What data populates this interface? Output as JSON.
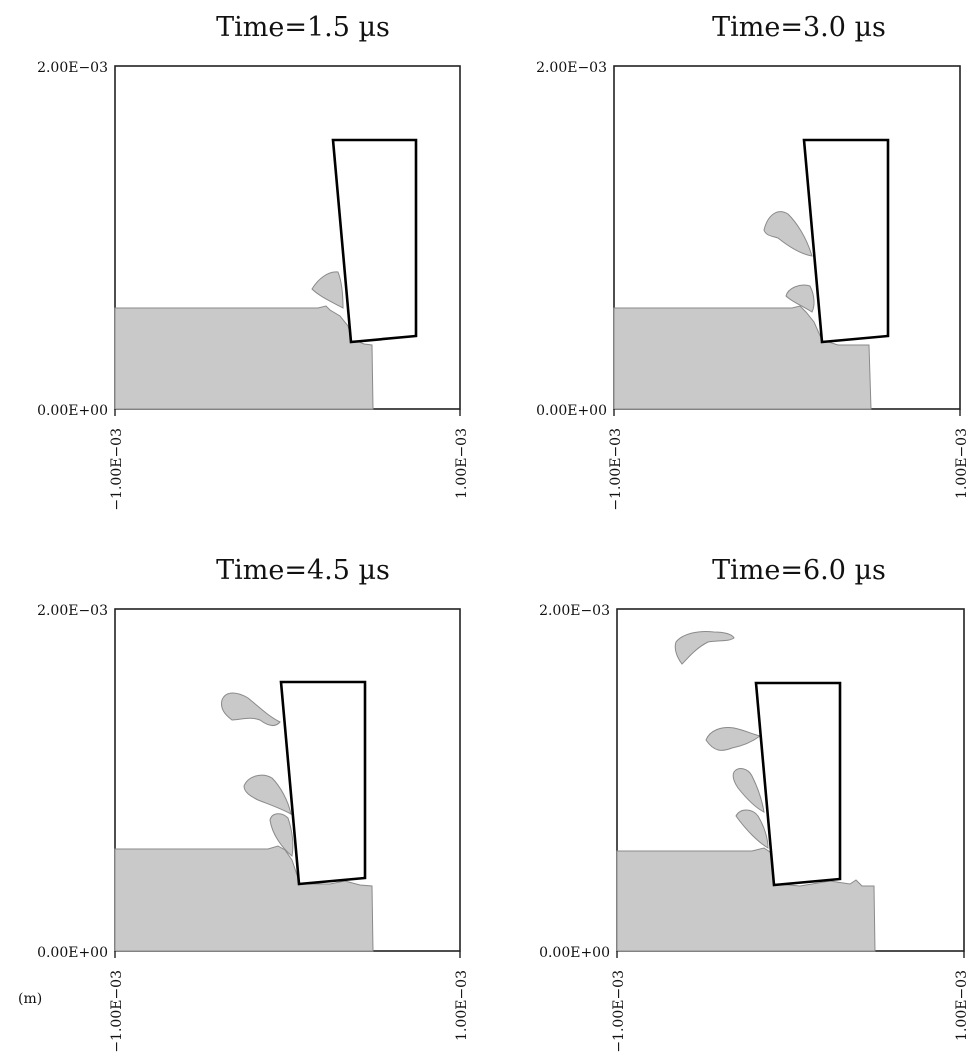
{
  "panels": [
    {
      "title": "Time=1.5 µs",
      "y_max_label": "2.00E−03",
      "y_min_label": "0.00E+00",
      "x_min_label": "−1.00E−03",
      "x_max_label": "1.00E−03"
    },
    {
      "title": "Time=3.0 µs",
      "y_max_label": "2.00E−03",
      "y_min_label": "0.00E+00",
      "x_min_label": "−1.00E−03",
      "x_max_label": "1.00E−03"
    },
    {
      "title": "Time=4.5 µs",
      "y_max_label": "2.00E−03",
      "y_min_label": "0.00E+00",
      "x_min_label": "−1.00E−03",
      "x_max_label": "1.00E−03"
    },
    {
      "title": "Time=6.0 µs",
      "y_max_label": "2.00E−03",
      "y_min_label": "0.00E+00",
      "x_min_label": "−1.00E−03",
      "x_max_label": "1.00E−03"
    }
  ],
  "unit_label": "(m)",
  "colors": {
    "workpiece": "#c9c9c9",
    "tool_outline": "#000000",
    "background": "#ffffff"
  }
}
